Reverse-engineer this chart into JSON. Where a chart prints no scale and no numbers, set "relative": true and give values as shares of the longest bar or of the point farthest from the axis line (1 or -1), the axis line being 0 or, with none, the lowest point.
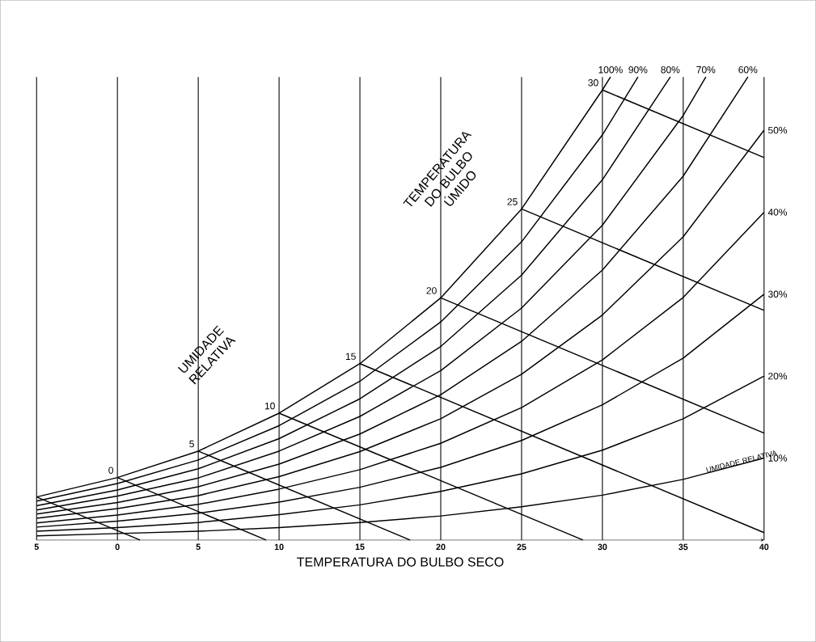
{
  "chart_data": {
    "type": "line",
    "relative": true,
    "xlabel": "TEMPERATURA DO BULBO SECO",
    "xlim": [
      -5,
      40
    ],
    "xticks": [
      {
        "value": -5,
        "label": "5"
      },
      0,
      5,
      10,
      15,
      20,
      25,
      30,
      35,
      40
    ],
    "grid": "x",
    "annotations": [
      "UMIDADE RELATIVA",
      "TEMPERATURA DO BULBO ÚMIDO",
      "UMIDADE RELATIVA"
    ],
    "series": [
      {
        "name": "100%",
        "color": "#000000",
        "x": [
          -5,
          0,
          5,
          10,
          15,
          20,
          25,
          30,
          30.5
        ],
        "values": [
          0.093,
          0.135,
          0.192,
          0.274,
          0.381,
          0.523,
          0.715,
          0.972,
          1
        ]
      },
      {
        "name": "90%",
        "color": "#000000",
        "x": [
          -5,
          0,
          5,
          10,
          15,
          20,
          25,
          30,
          32.2
        ],
        "values": [
          0.084,
          0.122,
          0.173,
          0.247,
          0.343,
          0.471,
          0.644,
          0.875,
          1
        ]
      },
      {
        "name": "80%",
        "color": "#000000",
        "x": [
          -5,
          0,
          5,
          10,
          15,
          20,
          25,
          30,
          34.2
        ],
        "values": [
          0.074,
          0.108,
          0.154,
          0.219,
          0.305,
          0.418,
          0.572,
          0.778,
          1
        ]
      },
      {
        "name": "70%",
        "color": "#000000",
        "x": [
          -5,
          0,
          5,
          10,
          15,
          20,
          25,
          30,
          35,
          36.4
        ],
        "values": [
          0.065,
          0.095,
          0.134,
          0.192,
          0.267,
          0.366,
          0.501,
          0.68,
          0.917,
          1
        ]
      },
      {
        "name": "60%",
        "color": "#000000",
        "x": [
          -5,
          0,
          5,
          10,
          15,
          20,
          25,
          30,
          35,
          39
        ],
        "values": [
          0.056,
          0.081,
          0.115,
          0.164,
          0.229,
          0.314,
          0.429,
          0.583,
          0.786,
          1
        ]
      },
      {
        "name": "50%",
        "color": "#000000",
        "x": [
          -5,
          0,
          5,
          10,
          15,
          20,
          25,
          30,
          35,
          40
        ],
        "values": [
          0.047,
          0.068,
          0.096,
          0.137,
          0.191,
          0.262,
          0.358,
          0.486,
          0.655,
          0.885
        ]
      },
      {
        "name": "40%",
        "color": "#000000",
        "x": [
          -5,
          0,
          5,
          10,
          15,
          20,
          25,
          30,
          35,
          40
        ],
        "values": [
          0.037,
          0.054,
          0.077,
          0.11,
          0.152,
          0.209,
          0.286,
          0.389,
          0.524,
          0.708
        ]
      },
      {
        "name": "30%",
        "color": "#000000",
        "x": [
          -5,
          0,
          5,
          10,
          15,
          20,
          25,
          30,
          35,
          40
        ],
        "values": [
          0.028,
          0.041,
          0.058,
          0.082,
          0.114,
          0.157,
          0.215,
          0.292,
          0.393,
          0.531
        ]
      },
      {
        "name": "20%",
        "color": "#000000",
        "x": [
          -5,
          0,
          5,
          10,
          15,
          20,
          25,
          30,
          35,
          40
        ],
        "values": [
          0.019,
          0.027,
          0.038,
          0.055,
          0.076,
          0.105,
          0.143,
          0.194,
          0.262,
          0.354
        ]
      },
      {
        "name": "10%",
        "color": "#000000",
        "x": [
          -5,
          0,
          5,
          10,
          15,
          20,
          25,
          30,
          35,
          40
        ],
        "values": [
          0.009,
          0.014,
          0.019,
          0.027,
          0.038,
          0.052,
          0.072,
          0.097,
          0.131,
          0.177
        ]
      },
      {
        "color": "#000000",
        "x": [
          -5,
          1.4
        ],
        "values": [
          0.093,
          0
        ]
      },
      {
        "name": "0",
        "color": "#000000",
        "x": [
          0,
          9.2
        ],
        "values": [
          0.135,
          0
        ]
      },
      {
        "name": "5",
        "color": "#000000",
        "x": [
          5,
          18.1
        ],
        "values": [
          0.192,
          0
        ]
      },
      {
        "name": "10",
        "color": "#000000",
        "x": [
          10,
          28.8
        ],
        "values": [
          0.274,
          0
        ]
      },
      {
        "name": "15",
        "color": "#000000",
        "x": [
          15,
          40
        ],
        "values": [
          0.381,
          0.016
        ]
      },
      {
        "name": "20",
        "color": "#000000",
        "x": [
          20,
          40
        ],
        "values": [
          0.523,
          0.231
        ]
      },
      {
        "name": "25",
        "color": "#000000",
        "x": [
          25,
          40
        ],
        "values": [
          0.715,
          0.496
        ]
      },
      {
        "name": "30",
        "color": "#000000",
        "x": [
          30,
          40
        ],
        "values": [
          0.972,
          0.826
        ]
      }
    ]
  }
}
